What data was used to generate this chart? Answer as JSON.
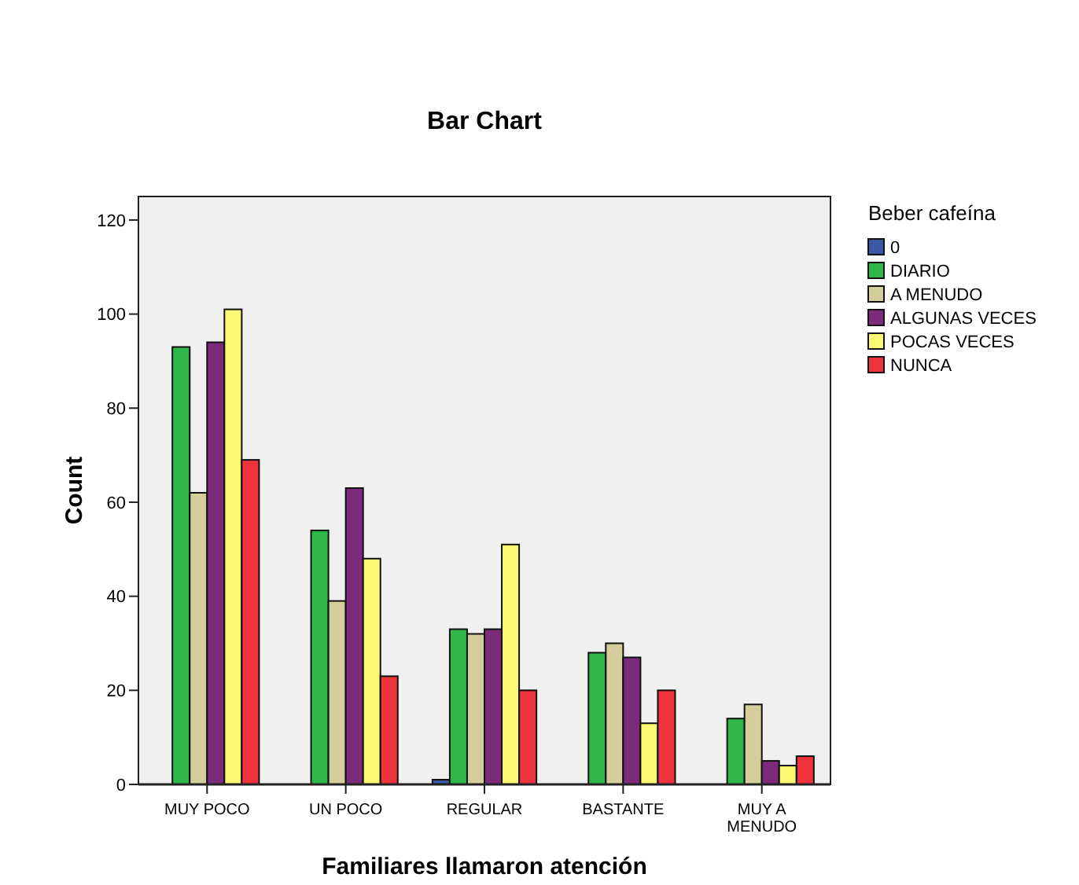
{
  "chart_data": {
    "type": "bar",
    "title": "Bar Chart",
    "xlabel": "Familiares llamaron atención",
    "ylabel": "Count",
    "legend_title": "Beber cafeína",
    "legend": "right",
    "grid": false,
    "categories": [
      "MUY POCO",
      "UN POCO",
      "REGULAR",
      "BASTANTE",
      "MUY A MENUDO"
    ],
    "ylim": [
      0,
      125
    ],
    "yticks": [
      0,
      20,
      40,
      60,
      80,
      100,
      120
    ],
    "series": [
      {
        "name": "0",
        "color": "#3b58a6",
        "values": [
          null,
          null,
          1,
          null,
          null
        ]
      },
      {
        "name": "DIARIO",
        "color": "#2fb84a",
        "values": [
          93,
          54,
          33,
          28,
          14
        ]
      },
      {
        "name": "A MENUDO",
        "color": "#d4cf9a",
        "values": [
          62,
          39,
          32,
          30,
          17
        ]
      },
      {
        "name": "ALGUNAS VECES",
        "color": "#7b2a7c",
        "values": [
          94,
          63,
          33,
          27,
          5
        ]
      },
      {
        "name": "POCAS VECES",
        "color": "#fbf874",
        "values": [
          101,
          48,
          51,
          13,
          4
        ]
      },
      {
        "name": "NUNCA",
        "color": "#ef323c",
        "values": [
          69,
          23,
          20,
          20,
          6
        ]
      }
    ]
  }
}
